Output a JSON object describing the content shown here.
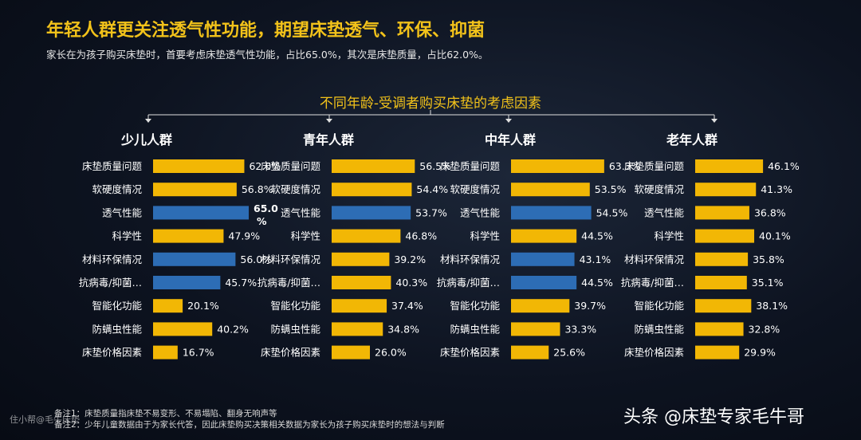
{
  "header": {
    "title": "年轻人群更关注透气性功能，期望床垫透气、环保、抑菌",
    "subtitle": "家长在为孩子购买床垫时，首要考虑床垫透气性功能，占比65.0%，其次是床垫质量，占比62.0%。"
  },
  "chart_title": "不同年龄-受调者购买床垫的考虑因素",
  "colors": {
    "yellow": "#f2b705",
    "blue": "#2d6db5",
    "label": "#ffffff",
    "title": "#f2c21a"
  },
  "chart_data": [
    {
      "type": "bar",
      "orientation": "horizontal",
      "title": "少儿人群",
      "categories": [
        "床垫质量问题",
        "软硬度情况",
        "透气性能",
        "科学性",
        "材料环保情况",
        "抗病毒/抑菌…",
        "智能化功能",
        "防螨虫性能",
        "床垫价格因素"
      ],
      "values": [
        62.0,
        56.8,
        65.0,
        47.9,
        56.0,
        45.7,
        20.1,
        40.2,
        16.7
      ],
      "labels": [
        "62.0%",
        "56.8%",
        "65.0",
        "47.9%",
        "56.0%",
        "45.7%",
        "20.1%",
        "40.2%",
        "16.7%"
      ],
      "highlight": [
        false,
        false,
        true,
        false,
        true,
        true,
        false,
        false,
        false
      ],
      "unit": "%",
      "xlim": [
        0,
        100
      ]
    },
    {
      "type": "bar",
      "orientation": "horizontal",
      "title": "青年人群",
      "categories": [
        "床垫质量问题",
        "软硬度情况",
        "透气性能",
        "科学性",
        "材料环保情况",
        "抗病毒/抑菌…",
        "智能化功能",
        "防螨虫性能",
        "床垫价格因素"
      ],
      "values": [
        56.5,
        54.4,
        53.7,
        46.8,
        39.2,
        40.3,
        37.4,
        34.8,
        26.0
      ],
      "labels": [
        "56.5%",
        "54.4%",
        "53.7%",
        "46.8%",
        "39.2%",
        "40.3%",
        "37.4%",
        "34.8%",
        "26.0%"
      ],
      "highlight": [
        false,
        false,
        true,
        false,
        false,
        false,
        false,
        false,
        false
      ],
      "xlim": [
        0,
        100
      ]
    },
    {
      "type": "bar",
      "orientation": "horizontal",
      "title": "中年人群",
      "categories": [
        "床垫质量问题",
        "软硬度情况",
        "透气性能",
        "科学性",
        "材料环保情况",
        "抗病毒/抑菌…",
        "智能化功能",
        "防螨虫性能",
        "床垫价格因素"
      ],
      "values": [
        63.3,
        53.5,
        54.5,
        44.5,
        43.1,
        44.5,
        39.7,
        33.3,
        25.6
      ],
      "labels": [
        "63.3%",
        "53.5%",
        "54.5%",
        "44.5%",
        "43.1%",
        "44.5%",
        "39.7%",
        "33.3%",
        "25.6%"
      ],
      "highlight": [
        false,
        false,
        true,
        false,
        true,
        true,
        false,
        false,
        false
      ],
      "xlim": [
        0,
        100
      ]
    },
    {
      "type": "bar",
      "orientation": "horizontal",
      "title": "老年人群",
      "categories": [
        "床垫质量问题",
        "软硬度情况",
        "透气性能",
        "科学性",
        "材料环保情况",
        "抗病毒/抑菌…",
        "智能化功能",
        "防螨虫性能",
        "床垫价格因素"
      ],
      "values": [
        46.1,
        41.3,
        36.8,
        40.1,
        35.8,
        35.1,
        38.1,
        32.8,
        29.9
      ],
      "labels": [
        "46.1%",
        "41.3%",
        "36.8%",
        "40.1%",
        "35.8%",
        "35.1%",
        "38.1%",
        "32.8%",
        "29.9%"
      ],
      "highlight": [
        false,
        false,
        false,
        false,
        false,
        false,
        false,
        false,
        false
      ],
      "xlim": [
        0,
        100
      ]
    }
  ],
  "notes": [
    "备注1：床垫质量指床垫不易变形、不易塌陷、翻身无响声等",
    "备注2：少年儿童数据由于为家长代答，因此床垫购买决策相关数据为家长为孩子购买床垫时的想法与判断"
  ],
  "watermarks": {
    "left": "住小帮@毛牛床垫",
    "right": "头条 @床垫专家毛牛哥"
  }
}
